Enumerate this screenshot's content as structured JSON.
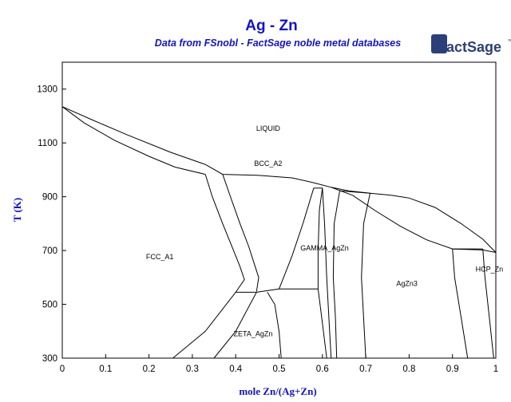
{
  "chart_data": {
    "type": "line",
    "title": "Ag - Zn",
    "subtitle": "Data from FSnobl - FactSage noble metal databases",
    "xlabel": "mole Zn/(Ag+Zn)",
    "ylabel": "T (K)",
    "xlim": [
      0,
      1
    ],
    "ylim": [
      300,
      1400
    ],
    "x_ticks": [
      0,
      0.1,
      0.2,
      0.3,
      0.4,
      0.5,
      0.6,
      0.7,
      0.8,
      0.9,
      1
    ],
    "x_tick_labels": [
      "0",
      "0.1",
      "0.2",
      "0.3",
      "0.4",
      "0.5",
      "0.6",
      "0.7",
      "0.8",
      "0.9",
      "1"
    ],
    "y_ticks": [
      300,
      500,
      700,
      900,
      1100,
      1300
    ],
    "y_tick_labels": [
      "300",
      "500",
      "700",
      "900",
      "1100",
      "1300"
    ],
    "grid": false,
    "colors": {
      "title": "#1212cc",
      "lines": "#000000",
      "logo": "#2b3f78"
    },
    "phase_regions": [
      {
        "label": "LIQUID",
        "x": 0.475,
        "y": 1145
      },
      {
        "label": "BCC_A2",
        "x": 0.475,
        "y": 1015
      },
      {
        "label": "FCC_A1",
        "x": 0.225,
        "y": 667
      },
      {
        "label": "GAMMA_AgZn",
        "x": 0.605,
        "y": 700
      },
      {
        "label": "AgZn3",
        "x": 0.795,
        "y": 568
      },
      {
        "label": "HCP_Zn",
        "x": 0.985,
        "y": 622
      },
      {
        "label": "ZETA_AgZn",
        "x": 0.44,
        "y": 382
      }
    ],
    "boundaries": [
      {
        "name": "liquidus",
        "points": [
          [
            0,
            1235
          ],
          [
            0.07,
            1185
          ],
          [
            0.15,
            1130
          ],
          [
            0.25,
            1065
          ],
          [
            0.33,
            1020
          ],
          [
            0.37,
            983
          ],
          [
            0.45,
            980
          ],
          [
            0.53,
            970
          ],
          [
            0.58,
            952
          ],
          [
            0.62,
            935
          ],
          [
            0.66,
            922
          ],
          [
            0.71,
            913
          ],
          [
            0.76,
            905
          ],
          [
            0.8,
            895
          ],
          [
            0.86,
            860
          ],
          [
            0.92,
            800
          ],
          [
            0.97,
            742
          ],
          [
            1,
            693
          ]
        ]
      },
      {
        "name": "fcc-solidus",
        "points": [
          [
            0,
            1235
          ],
          [
            0.05,
            1175
          ],
          [
            0.12,
            1110
          ],
          [
            0.2,
            1050
          ],
          [
            0.26,
            1010
          ],
          [
            0.33,
            983
          ]
        ]
      },
      {
        "name": "fcc-bcc-left-lower",
        "points": [
          [
            0.33,
            983
          ],
          [
            0.346,
            900
          ],
          [
            0.37,
            800
          ],
          [
            0.395,
            700
          ],
          [
            0.41,
            640
          ],
          [
            0.42,
            592
          ],
          [
            0.4,
            545
          ]
        ]
      },
      {
        "name": "fcc-bcc-left-upper",
        "points": [
          [
            0.37,
            983
          ],
          [
            0.39,
            890
          ],
          [
            0.41,
            800
          ],
          [
            0.43,
            715
          ],
          [
            0.445,
            640
          ],
          [
            0.453,
            600
          ],
          [
            0.448,
            548
          ]
        ]
      },
      {
        "name": "bcc-eutectoid-line",
        "points": [
          [
            0.4,
            545
          ],
          [
            0.448,
            545
          ]
        ]
      },
      {
        "name": "zeta-left",
        "points": [
          [
            0.255,
            300
          ],
          [
            0.33,
            400
          ],
          [
            0.4,
            545
          ]
        ]
      },
      {
        "name": "zeta-right",
        "points": [
          [
            0.35,
            300
          ],
          [
            0.4,
            400
          ],
          [
            0.448,
            545
          ]
        ]
      },
      {
        "name": "zeta-gamma-line",
        "points": [
          [
            0.448,
            545
          ],
          [
            0.5,
            557
          ]
        ]
      },
      {
        "name": "zeta-center",
        "points": [
          [
            0.473,
            545
          ],
          [
            0.49,
            500
          ],
          [
            0.5,
            400
          ],
          [
            0.505,
            300
          ]
        ]
      },
      {
        "name": "bcc-gamma-left",
        "points": [
          [
            0.5,
            557
          ],
          [
            0.53,
            680
          ],
          [
            0.555,
            800
          ],
          [
            0.58,
            932
          ]
        ]
      },
      {
        "name": "gamma-peritectic-line",
        "points": [
          [
            0.58,
            932
          ],
          [
            0.6,
            932
          ]
        ]
      },
      {
        "name": "bcc-gamma-right",
        "points": [
          [
            0.6,
            932
          ],
          [
            0.593,
            850
          ],
          [
            0.59,
            700
          ],
          [
            0.59,
            557
          ]
        ]
      },
      {
        "name": "gamma-right-bottom",
        "points": [
          [
            0.59,
            557
          ],
          [
            0.6,
            430
          ],
          [
            0.61,
            300
          ]
        ]
      },
      {
        "name": "gamma-platform",
        "points": [
          [
            0.5,
            557
          ],
          [
            0.59,
            557
          ]
        ]
      },
      {
        "name": "gamma-right-2",
        "points": [
          [
            0.6,
            932
          ],
          [
            0.605,
            800
          ],
          [
            0.61,
            600
          ],
          [
            0.615,
            450
          ],
          [
            0.62,
            300
          ]
        ]
      },
      {
        "name": "gamma-agzn3-left",
        "points": [
          [
            0.64,
            922
          ],
          [
            0.627,
            800
          ],
          [
            0.625,
            600
          ],
          [
            0.63,
            450
          ],
          [
            0.633,
            300
          ]
        ]
      },
      {
        "name": "gamma-agzn3-right",
        "points": [
          [
            0.71,
            913
          ],
          [
            0.695,
            800
          ],
          [
            0.69,
            600
          ],
          [
            0.695,
            450
          ],
          [
            0.7,
            300
          ]
        ]
      },
      {
        "name": "peritectic-line-2",
        "points": [
          [
            0.64,
            922
          ],
          [
            0.71,
            913
          ]
        ]
      },
      {
        "name": "agzn3-liquid-lower",
        "points": [
          [
            0.62,
            935
          ],
          [
            0.67,
            905
          ],
          [
            0.72,
            850
          ],
          [
            0.78,
            790
          ],
          [
            0.84,
            740
          ],
          [
            0.9,
            706
          ],
          [
            0.97,
            702
          ],
          [
            1,
            693
          ]
        ]
      },
      {
        "name": "agzn3-hcp-left",
        "points": [
          [
            0.9,
            706
          ],
          [
            0.905,
            600
          ],
          [
            0.92,
            450
          ],
          [
            0.935,
            300
          ]
        ]
      },
      {
        "name": "eutectic-line",
        "points": [
          [
            0.9,
            706
          ],
          [
            0.97,
            706
          ]
        ]
      },
      {
        "name": "hcp-right",
        "points": [
          [
            0.97,
            706
          ],
          [
            0.975,
            600
          ],
          [
            0.985,
            450
          ],
          [
            0.995,
            300
          ]
        ]
      }
    ]
  },
  "logo": {
    "text": "FactSage",
    "mark": "™"
  }
}
